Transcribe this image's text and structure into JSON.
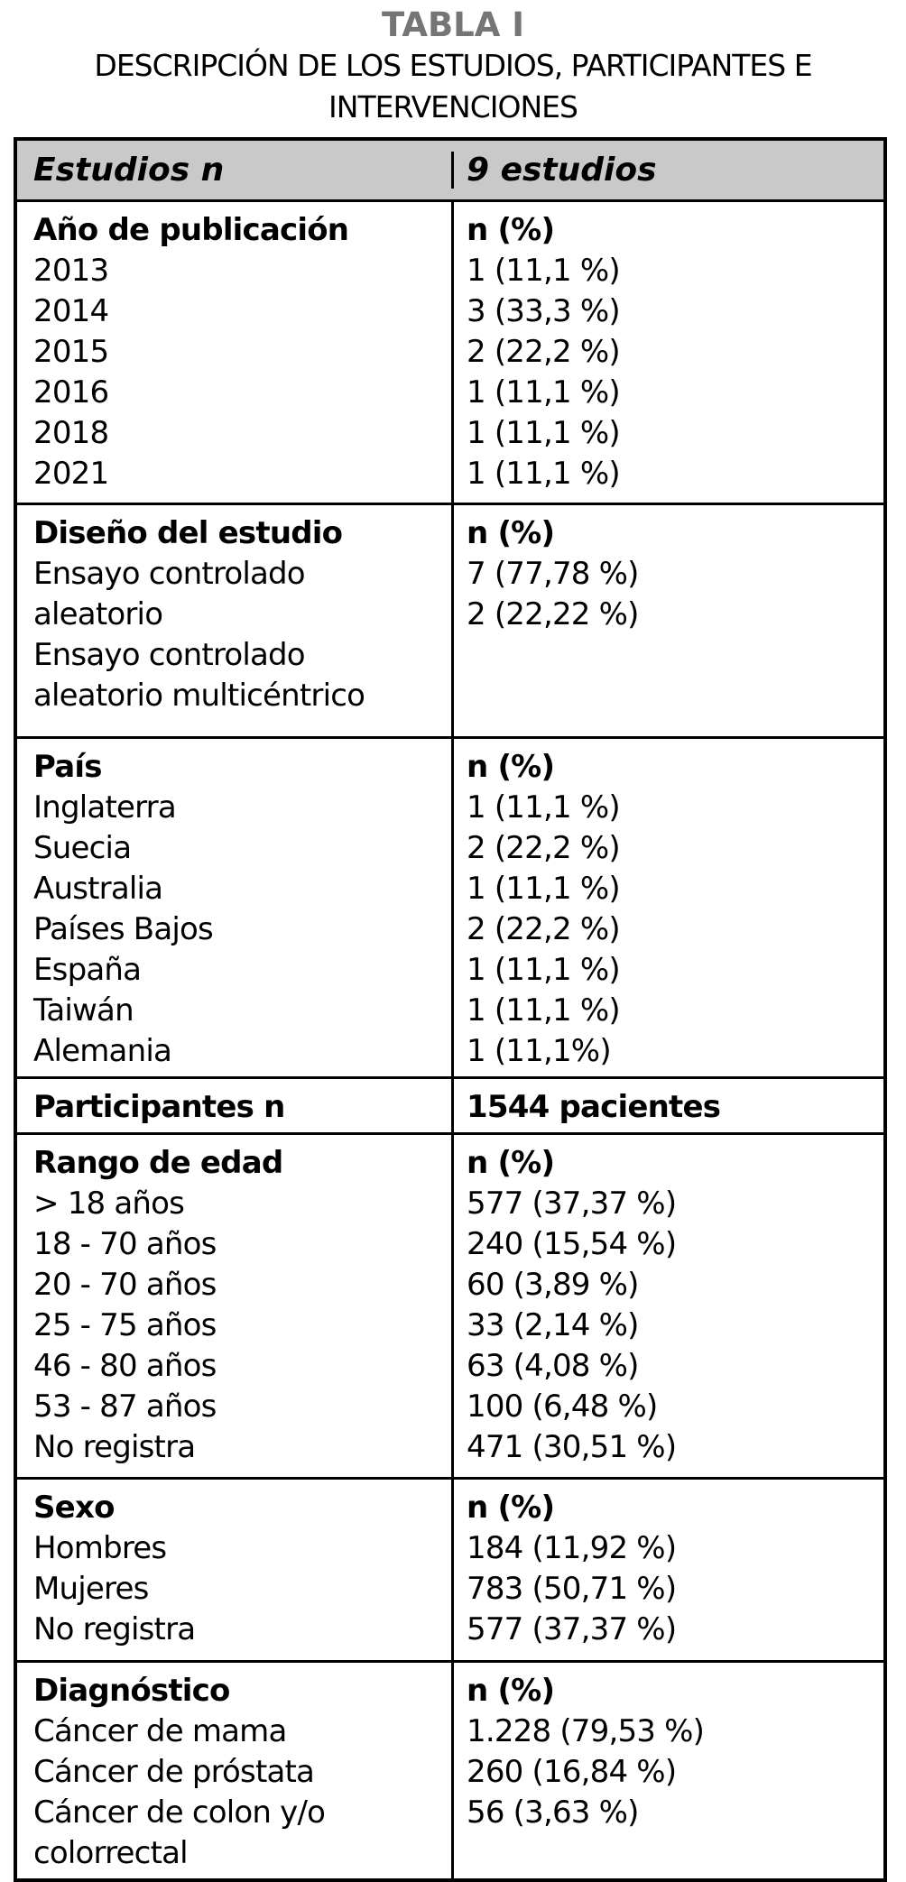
{
  "title": "TABLA I",
  "subtitle_line1": "DESCRIPCIÓN DE LOS ESTUDIOS, PARTICIPANTES E",
  "subtitle_line2": "INTERVENCIONES",
  "colors": {
    "header_bg": "#c9c9c9",
    "title_gray": "#757575",
    "border": "#000000",
    "text": "#000000"
  },
  "table": {
    "header": {
      "col1": "Estudios n",
      "col2": "9 estudios"
    },
    "sections": [
      {
        "id": "anio-publicacion",
        "left": [
          "Año de publicación",
          "2013",
          "2014",
          "2015",
          "2016",
          "2018",
          "2021"
        ],
        "right": [
          "n (%)",
          "1 (11,1 %)",
          "3 (33,3 %)",
          "2 (22,2 %)",
          "1 (11,1 %)",
          "1 (11,1 %)",
          "1 (11,1 %)"
        ]
      },
      {
        "id": "diseno-del-estudio",
        "left": [
          "Diseño del estudio",
          "Ensayo controlado",
          "aleatorio",
          "Ensayo controlado",
          "aleatorio multicéntrico"
        ],
        "right": [
          "n (%)",
          "7 (77,78 %)",
          "2 (22,22 %)"
        ]
      },
      {
        "id": "pais",
        "left": [
          "País",
          "Inglaterra",
          "Suecia",
          "Australia",
          "Países Bajos",
          "España",
          "Taiwán",
          "Alemania"
        ],
        "right": [
          "n (%)",
          "1 (11,1 %)",
          "2 (22,2 %)",
          "1 (11,1 %)",
          "2 (22,2 %)",
          "1 (11,1 %)",
          "1 (11,1 %)",
          "1 (11,1%)"
        ]
      },
      {
        "id": "participantes",
        "bold_values": true,
        "left": [
          "Participantes n"
        ],
        "right": [
          "1544 pacientes"
        ]
      },
      {
        "id": "rango-de-edad",
        "left": [
          "Rango de edad",
          "> 18 años",
          "18 - 70 años",
          "20 - 70 años",
          "25 - 75 años",
          "46 - 80 años",
          "53 - 87 años",
          "No registra"
        ],
        "right": [
          "n (%)",
          "577 (37,37 %)",
          "240 (15,54 %)",
          "60 (3,89 %)",
          "33 (2,14 %)",
          "63 (4,08 %)",
          "100 (6,48 %)",
          "471 (30,51 %)"
        ]
      },
      {
        "id": "sexo",
        "left": [
          "Sexo",
          "Hombres",
          "Mujeres",
          "No registra"
        ],
        "right": [
          "n (%)",
          "184 (11,92 %)",
          "783 (50,71 %)",
          "577 (37,37 %)"
        ]
      },
      {
        "id": "diagnostico",
        "left": [
          "Diagnóstico",
          "Cáncer de mama",
          "Cáncer de próstata",
          "Cáncer de colon y/o",
          "colorrectal"
        ],
        "right": [
          "n (%)",
          "1.228 (79,53 %)",
          "260 (16,84 %)",
          "56 (3,63 %)"
        ]
      }
    ]
  }
}
